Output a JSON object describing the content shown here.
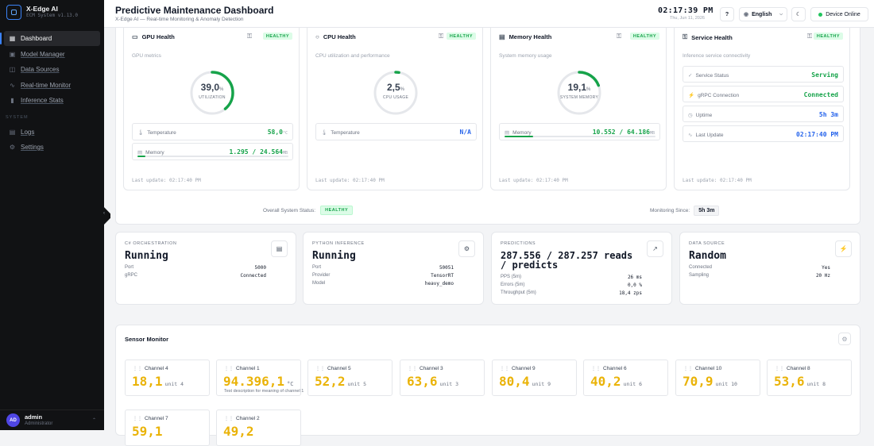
{
  "brand": {
    "name": "X-Edge AI",
    "sub": "ECM System v1.13.0"
  },
  "nav": {
    "items": [
      {
        "label": "Dashboard",
        "icon": "grid-icon"
      },
      {
        "label": "Model Manager",
        "icon": "cpu-icon"
      },
      {
        "label": "Data Sources",
        "icon": "database-icon"
      },
      {
        "label": "Real-time Monitor",
        "icon": "activity-icon"
      },
      {
        "label": "Inference Stats",
        "icon": "bar-chart-icon"
      }
    ],
    "system_label": "SYSTEM",
    "system_items": [
      {
        "label": "Logs",
        "icon": "file-text-icon"
      },
      {
        "label": "Settings",
        "icon": "gear-icon"
      }
    ]
  },
  "user": {
    "initials": "AD",
    "name": "admin",
    "role": "Administrator"
  },
  "header": {
    "title": "Predictive Maintenance Dashboard",
    "subtitle": "X-Edge AI — Real-time Monitoring & Anomaly Detection",
    "clock": "02:17:39 PM",
    "date": "Thu, Jun 11, 2026",
    "help": "?",
    "language": "English",
    "device_status": "Device Online"
  },
  "health": {
    "gpu": {
      "title": "GPU Health",
      "badge": "HEALTHY",
      "sub": "GPU metrics",
      "gauge_value": "39,0",
      "gauge_unit": "%",
      "gauge_label": "UTILIZATION",
      "gauge_fraction": 0.39,
      "temp_label": "Temperature",
      "temp_value": "58,0",
      "temp_unit": "°C",
      "mem_label": "Memory",
      "mem_value": "1.295 / 24.564",
      "mem_unit": "MB",
      "mem_fraction": 0.053,
      "last_update": "Last update: 02:17:40 PM"
    },
    "cpu": {
      "title": "CPU Health",
      "badge": "HEALTHY",
      "sub": "CPU utilization and performance",
      "gauge_value": "2,5",
      "gauge_unit": "%",
      "gauge_label": "CPU USAGE",
      "gauge_fraction": 0.025,
      "temp_label": "Temperature",
      "temp_value": "N/A",
      "last_update": "Last update: 02:17:40 PM"
    },
    "memory": {
      "title": "Memory Health",
      "badge": "HEALTHY",
      "sub": "System memory usage",
      "gauge_value": "19,1",
      "gauge_unit": "%",
      "gauge_label": "SYSTEM MEMORY",
      "gauge_fraction": 0.191,
      "mem_label": "Memory",
      "mem_value": "10.552 / 64.186",
      "mem_unit": "MB",
      "mem_fraction": 0.191,
      "last_update": "Last update: 02:17:40 PM"
    },
    "service": {
      "title": "Service Health",
      "badge": "HEALTHY",
      "sub": "Inference service connectivity",
      "rows": [
        {
          "label": "Service Status",
          "value": "Serving",
          "icon": "check-circle-icon"
        },
        {
          "label": "gRPC Connection",
          "value": "Connected",
          "icon": "zap-icon"
        },
        {
          "label": "Uptime",
          "value": "5h 3m",
          "icon": "clock-icon"
        },
        {
          "label": "Last Update",
          "value": "02:17:40 PM",
          "icon": "activity-icon"
        }
      ],
      "last_update": "Last update: 02:17:40 PM"
    },
    "overall_label": "Overall System Status:",
    "overall_value": "HEALTHY",
    "since_label": "Monitoring Since:",
    "since_value": "5h 3m"
  },
  "stats": {
    "csharp": {
      "label": "C# ORCHESTRATION",
      "value": "Running",
      "rows": [
        [
          "Port",
          "5000"
        ],
        [
          "gRPC",
          "Connected"
        ]
      ]
    },
    "python": {
      "label": "PYTHON INFERENCE",
      "value": "Running",
      "rows": [
        [
          "Port",
          "50051"
        ],
        [
          "Provider",
          "TensorRT"
        ],
        [
          "Model",
          "heavy_demo"
        ]
      ]
    },
    "predictions": {
      "label": "PREDICTIONS",
      "value": "287.556 / 287.257 reads / predicts",
      "rows": [
        [
          "PPS (5m)",
          "26 ms"
        ],
        [
          "Errors (5m)",
          "0,0 %"
        ],
        [
          "Throughput (5m)",
          "18,4 zps"
        ]
      ]
    },
    "datasource": {
      "label": "DATA SOURCE",
      "value": "Random",
      "rows": [
        [
          "Connected",
          "Yes"
        ],
        [
          "Sampling",
          "20 Hz"
        ]
      ]
    }
  },
  "sensors": {
    "title": "Sensor Monitor",
    "items": [
      {
        "name": "Channel 4",
        "value": "18,1",
        "unit": "unit 4"
      },
      {
        "name": "Channel 1",
        "value": "94.396,1",
        "unit": "°C",
        "desc": "Test description for meaning of channel 1"
      },
      {
        "name": "Channel 5",
        "value": "52,2",
        "unit": "unit 5"
      },
      {
        "name": "Channel 3",
        "value": "63,6",
        "unit": "unit 3"
      },
      {
        "name": "Channel 9",
        "value": "80,4",
        "unit": "unit 9"
      },
      {
        "name": "Channel 6",
        "value": "40,2",
        "unit": "unit 6"
      },
      {
        "name": "Channel 10",
        "value": "70,9",
        "unit": "unit 10"
      },
      {
        "name": "Channel 8",
        "value": "53,6",
        "unit": "unit 8"
      },
      {
        "name": "Channel 7",
        "value": "59,1",
        "unit": ""
      },
      {
        "name": "Channel 2",
        "value": "49,2",
        "unit": ""
      }
    ]
  }
}
